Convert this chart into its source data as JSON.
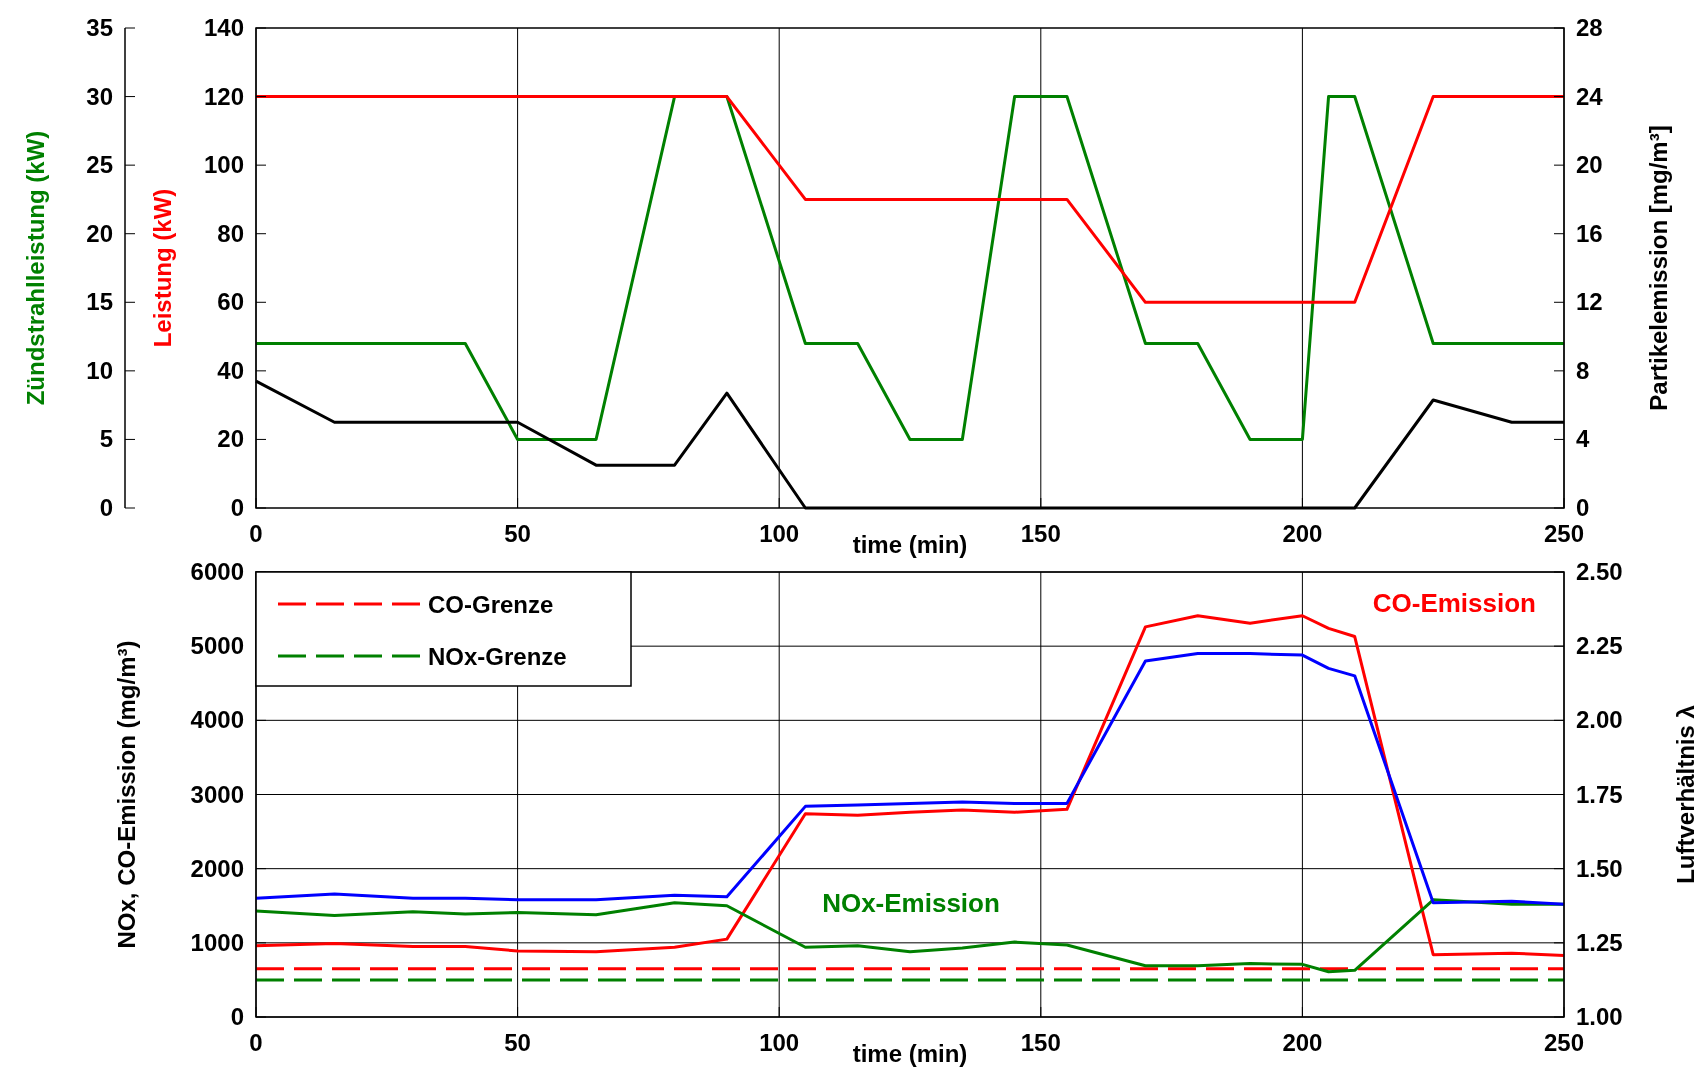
{
  "chart_data": [
    {
      "type": "line",
      "xlabel": "time  (min)",
      "ylabel": "Zündstrahlleistung (kW)",
      "y3label": "Leistung  (kW)",
      "y2label": "Partikelemission  [mg/m³]",
      "xlim": [
        0,
        250
      ],
      "xticks": [
        0,
        50,
        100,
        150,
        200,
        250
      ],
      "ylim": [
        0,
        35
      ],
      "yticks": [
        0,
        5,
        10,
        15,
        20,
        25,
        30,
        35
      ],
      "y3lim": [
        0,
        140
      ],
      "y3ticks": [
        0,
        20,
        40,
        60,
        80,
        100,
        120,
        140
      ],
      "y2lim": [
        0,
        28
      ],
      "y2ticks": [
        0,
        4,
        8,
        12,
        16,
        20,
        24,
        28
      ],
      "grid": "x",
      "legend": false,
      "series": [
        {
          "color": "#008000",
          "x": [
            0,
            40,
            50,
            65,
            80,
            90,
            105,
            115,
            125,
            135,
            145,
            155,
            170,
            180,
            190,
            200,
            205,
            210,
            225,
            250
          ],
          "values": [
            12,
            12,
            5,
            5,
            30,
            30,
            12,
            12,
            5,
            5,
            30,
            30,
            12,
            12,
            5,
            5,
            30,
            30,
            12,
            12
          ]
        },
        {
          "color": "#ff0000",
          "axis": "y3",
          "x": [
            0,
            80,
            90,
            105,
            155,
            170,
            210,
            225,
            250
          ],
          "values": [
            120,
            120,
            120,
            90,
            90,
            60,
            60,
            120,
            120
          ]
        },
        {
          "color": "#000000",
          "axis": "y2",
          "x": [
            0,
            15,
            50,
            65,
            80,
            90,
            105,
            210,
            225,
            240,
            250
          ],
          "values": [
            7.4,
            5,
            5,
            2.5,
            2.5,
            6.7,
            0,
            0,
            6.3,
            5,
            5
          ]
        }
      ]
    },
    {
      "type": "line",
      "xlabel": "time  (min)",
      "ylabel": "NOx, CO-Emission  (mg/m³)",
      "y2label": "Luftverhältnis λ",
      "xlim": [
        0,
        250
      ],
      "xticks": [
        0,
        50,
        100,
        150,
        200,
        250
      ],
      "ylim": [
        0,
        6000
      ],
      "yticks": [
        0,
        1000,
        2000,
        3000,
        4000,
        5000,
        6000
      ],
      "y2lim": [
        1,
        2.5
      ],
      "y2ticks": [
        {
          "value": 1,
          "label": "1.00"
        },
        {
          "value": 1.25,
          "label": "1.25"
        },
        {
          "value": 1.5,
          "label": "1.50"
        },
        {
          "value": 1.75,
          "label": "1.75"
        },
        {
          "value": 2,
          "label": "2.00"
        },
        {
          "value": 2.25,
          "label": "2.25"
        },
        {
          "value": 2.5,
          "label": "2.50"
        }
      ],
      "grid": true,
      "legend": "top left",
      "series": [
        {
          "name": "CO-Grenze",
          "color": "#ff0000",
          "line_style": "dashed",
          "x": [
            0,
            250
          ],
          "values": [
            650,
            650
          ]
        },
        {
          "name": "NOx-Grenze",
          "color": "#008000",
          "line_style": "dashed",
          "x": [
            0,
            250
          ],
          "values": [
            500,
            500
          ]
        },
        {
          "name": "CO-Emission",
          "color": "#ff0000",
          "x": [
            0,
            15,
            30,
            40,
            50,
            65,
            80,
            90,
            105,
            115,
            125,
            135,
            145,
            155,
            170,
            180,
            190,
            200,
            205,
            210,
            225,
            240,
            250
          ],
          "values": [
            960,
            990,
            950,
            950,
            890,
            880,
            940,
            1050,
            2740,
            2720,
            2760,
            2790,
            2760,
            2800,
            5260,
            5410,
            5310,
            5410,
            5240,
            5130,
            840,
            860,
            830
          ]
        },
        {
          "name": "NOx-Emission",
          "color": "#008000",
          "x": [
            0,
            15,
            30,
            40,
            50,
            65,
            80,
            90,
            105,
            115,
            125,
            135,
            145,
            155,
            170,
            180,
            190,
            200,
            205,
            210,
            225,
            240,
            250
          ],
          "values": [
            1430,
            1370,
            1420,
            1390,
            1410,
            1380,
            1540,
            1500,
            940,
            960,
            880,
            930,
            1010,
            970,
            690,
            690,
            720,
            710,
            610,
            630,
            1580,
            1520,
            1520
          ]
        },
        {
          "color": "#0000ff",
          "axis": "y2",
          "x": [
            0,
            15,
            30,
            40,
            50,
            65,
            80,
            90,
            105,
            115,
            125,
            135,
            145,
            155,
            170,
            180,
            190,
            200,
            205,
            210,
            225,
            240,
            250
          ],
          "values": [
            1.4,
            1.415,
            1.4,
            1.4,
            1.395,
            1.395,
            1.41,
            1.405,
            1.71,
            1.715,
            1.72,
            1.725,
            1.72,
            1.72,
            2.2,
            2.225,
            2.225,
            2.22,
            2.175,
            2.15,
            1.385,
            1.39,
            1.38
          ]
        }
      ]
    }
  ]
}
